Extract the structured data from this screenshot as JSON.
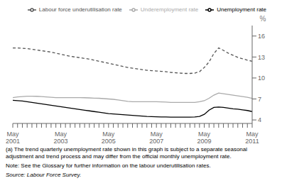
{
  "chart_data": {
    "type": "line",
    "y_label": "%",
    "ylim": [
      3.5,
      17.5
    ],
    "yticks": [
      4,
      7,
      10,
      13,
      16
    ],
    "grid": false,
    "legend": "upper right",
    "categories": [
      "May\n2001",
      null,
      null,
      null,
      null,
      null,
      null,
      null,
      null,
      null,
      "May\n2003",
      null,
      null,
      null,
      null,
      null,
      null,
      null,
      null,
      null,
      "May\n2005",
      null,
      null,
      null,
      null,
      null,
      null,
      null,
      null,
      null,
      "May\n2007",
      null,
      null,
      null,
      null,
      null,
      null,
      null,
      null,
      null,
      "May\n2009",
      null,
      null,
      null,
      null,
      null,
      null,
      null,
      null,
      null,
      "May\n2011"
    ],
    "series": [
      {
        "name": "Unemployment rate",
        "color": "#000000",
        "line_style": "solid",
        "values": [
          6.8,
          6.75,
          6.7,
          6.6,
          6.5,
          6.4,
          6.3,
          6.2,
          6.1,
          6.0,
          5.9,
          5.8,
          5.7,
          5.6,
          5.5,
          5.4,
          5.3,
          5.2,
          5.1,
          5.0,
          4.9,
          4.85,
          4.8,
          4.75,
          4.7,
          4.65,
          4.6,
          4.55,
          4.5,
          4.48,
          4.45,
          4.43,
          4.42,
          4.41,
          4.4,
          4.4,
          4.4,
          4.4,
          4.42,
          4.5,
          4.8,
          5.4,
          5.8,
          5.85,
          5.8,
          5.7,
          5.6,
          5.55,
          5.45,
          5.35,
          5.2
        ]
      },
      {
        "name": "Underemployment rate",
        "color": "#aaaaaa",
        "line_style": "solid",
        "values": [
          7.2,
          7.3,
          7.35,
          7.4,
          7.4,
          7.38,
          7.35,
          7.3,
          7.25,
          7.2,
          7.2,
          7.2,
          7.2,
          7.2,
          7.2,
          7.18,
          7.15,
          7.12,
          7.1,
          7.05,
          7.0,
          6.95,
          6.85,
          6.75,
          6.65,
          6.6,
          6.6,
          6.6,
          6.6,
          6.6,
          6.6,
          6.58,
          6.55,
          6.5,
          6.5,
          6.5,
          6.5,
          6.5,
          6.5,
          6.6,
          6.75,
          7.1,
          7.55,
          7.85,
          7.75,
          7.65,
          7.55,
          7.45,
          7.35,
          7.25,
          7.1
        ]
      },
      {
        "name": "Labour force underutilisation rate",
        "color": "#555555",
        "line_style": "dashed",
        "values": [
          14.3,
          14.3,
          14.25,
          14.2,
          14.1,
          14.0,
          13.9,
          13.8,
          13.7,
          13.55,
          13.4,
          13.25,
          13.1,
          13.0,
          12.9,
          12.8,
          12.7,
          12.55,
          12.4,
          12.25,
          12.1,
          11.95,
          11.8,
          11.65,
          11.5,
          11.4,
          11.3,
          11.2,
          11.1,
          11.05,
          11.0,
          10.95,
          10.9,
          10.8,
          10.75,
          10.7,
          10.65,
          10.65,
          10.7,
          10.9,
          11.5,
          12.3,
          13.5,
          14.3,
          13.95,
          13.55,
          13.25,
          12.95,
          12.75,
          12.55,
          12.4
        ]
      }
    ],
    "footnotes": [
      "(a) The trend quarterly unemployment rate shown in this graph is subject to a separate seasonal adjustment and trend process and may differ from the official monthly unemployment rate.",
      "Note: See the Glossary for further information on the labour underutilisation rates."
    ],
    "source": "Source: Labour Force Survey."
  }
}
